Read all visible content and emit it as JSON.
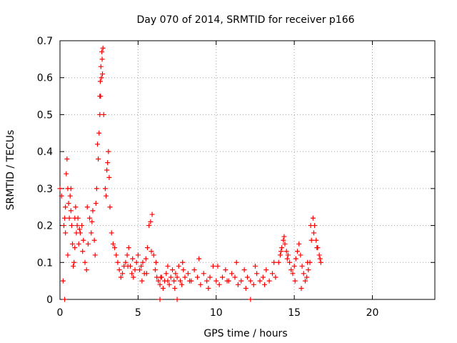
{
  "chart_data": {
    "type": "scatter",
    "title": "Day 070 of 2014, SRMTID for receiver p166",
    "xlabel": "GPS time / hours",
    "ylabel": "SRMTID / TECUs",
    "xlim": [
      0,
      24
    ],
    "ylim": [
      0,
      0.7
    ],
    "xticks": [
      0,
      5,
      10,
      15,
      20
    ],
    "yticks": [
      0,
      0.1,
      0.2,
      0.3,
      0.4,
      0.5,
      0.6,
      0.7
    ],
    "xtick_labels": [
      "0",
      "5",
      "10",
      "15",
      "20"
    ],
    "ytick_labels": [
      "0",
      "0.1",
      "0.2",
      "0.3",
      "0.4",
      "0.5",
      "0.6",
      "0.7"
    ],
    "grid": true,
    "marker": "+",
    "color": "#ff0000",
    "series": [
      {
        "name": "SRMTID",
        "x": [
          0.0,
          0.1,
          0.25,
          0.3,
          0.35,
          0.4,
          0.45,
          0.5,
          0.55,
          0.6,
          0.65,
          0.7,
          0.75,
          0.8,
          0.85,
          0.9,
          0.95,
          1.0,
          1.05,
          1.1,
          1.15,
          1.2,
          1.3,
          1.4,
          1.5,
          1.6,
          1.7,
          1.8,
          1.9,
          2.0,
          2.1,
          2.2,
          2.3,
          2.35,
          2.4,
          2.45,
          2.5,
          2.55,
          2.6,
          2.65,
          2.7,
          2.75,
          2.8,
          2.9,
          3.0,
          3.1,
          3.2,
          3.3,
          3.4,
          3.5,
          3.6,
          3.7,
          3.8,
          3.9,
          4.0,
          4.1,
          4.2,
          4.3,
          4.4,
          4.5,
          4.6,
          4.7,
          4.8,
          4.9,
          5.0,
          5.1,
          5.2,
          5.3,
          5.4,
          5.5,
          5.6,
          5.7,
          5.8,
          5.9,
          6.0,
          6.1,
          6.2,
          6.3,
          6.4,
          6.5,
          6.6,
          6.7,
          6.8,
          6.9,
          7.0,
          7.1,
          7.2,
          7.3,
          7.4,
          7.5,
          7.6,
          7.7,
          7.8,
          7.9,
          8.0,
          8.2,
          8.4,
          8.6,
          8.8,
          9.0,
          9.2,
          9.4,
          9.6,
          9.8,
          10.0,
          10.2,
          10.4,
          10.6,
          10.8,
          11.0,
          11.2,
          11.4,
          11.6,
          11.8,
          12.0,
          12.2,
          12.4,
          12.6,
          12.8,
          13.0,
          13.2,
          13.4,
          13.6,
          13.8,
          14.0,
          14.1,
          14.2,
          14.3,
          14.4,
          14.5,
          14.6,
          14.7,
          14.8,
          14.9,
          15.0,
          15.1,
          15.2,
          15.3,
          15.4,
          15.5,
          15.6,
          15.7,
          15.8,
          15.9,
          16.0,
          16.1,
          16.2,
          16.3,
          16.4,
          16.5,
          16.6,
          16.7,
          0.2,
          0.35,
          0.5,
          0.7,
          0.95,
          1.25,
          1.45,
          1.75,
          2.05,
          2.25,
          2.55,
          2.58,
          2.62,
          2.68,
          2.72,
          2.95,
          3.05,
          3.15,
          4.35,
          4.65,
          5.25,
          5.55,
          5.85,
          6.15,
          6.45,
          6.9,
          7.35,
          7.85,
          8.3,
          8.9,
          9.5,
          10.1,
          10.7,
          11.3,
          11.9,
          12.5,
          13.1,
          13.7,
          14.15,
          14.35,
          14.55,
          15.05,
          15.45,
          15.85,
          16.05,
          16.25,
          16.45,
          16.65,
          0.3,
          6.4,
          7.5,
          12.2
        ],
        "y": [
          0.3,
          0.28,
          0.2,
          0.22,
          0.25,
          0.34,
          0.38,
          0.3,
          0.26,
          0.22,
          0.28,
          0.3,
          0.2,
          0.15,
          0.09,
          0.1,
          0.22,
          0.25,
          0.18,
          0.2,
          0.22,
          0.15,
          0.18,
          0.2,
          0.16,
          0.1,
          0.08,
          0.15,
          0.22,
          0.18,
          0.24,
          0.16,
          0.26,
          0.3,
          0.42,
          0.38,
          0.45,
          0.5,
          0.55,
          0.6,
          0.65,
          0.68,
          0.5,
          0.3,
          0.35,
          0.4,
          0.25,
          0.18,
          0.15,
          0.14,
          0.12,
          0.1,
          0.08,
          0.06,
          0.07,
          0.09,
          0.1,
          0.12,
          0.14,
          0.09,
          0.07,
          0.06,
          0.08,
          0.1,
          0.12,
          0.08,
          0.09,
          0.1,
          0.07,
          0.11,
          0.14,
          0.2,
          0.21,
          0.23,
          0.12,
          0.08,
          0.06,
          0.05,
          0.04,
          0.06,
          0.03,
          0.05,
          0.07,
          0.05,
          0.04,
          0.06,
          0.08,
          0.05,
          0.07,
          0.06,
          0.09,
          0.05,
          0.04,
          0.08,
          0.06,
          0.07,
          0.05,
          0.08,
          0.06,
          0.04,
          0.07,
          0.05,
          0.06,
          0.09,
          0.05,
          0.04,
          0.06,
          0.08,
          0.05,
          0.07,
          0.06,
          0.04,
          0.05,
          0.08,
          0.06,
          0.05,
          0.04,
          0.07,
          0.05,
          0.06,
          0.08,
          0.05,
          0.07,
          0.06,
          0.1,
          0.12,
          0.14,
          0.16,
          0.15,
          0.13,
          0.12,
          0.1,
          0.08,
          0.07,
          0.09,
          0.11,
          0.13,
          0.15,
          0.12,
          0.09,
          0.07,
          0.05,
          0.06,
          0.08,
          0.1,
          0.16,
          0.22,
          0.2,
          0.16,
          0.14,
          0.12,
          0.1,
          0.05,
          0.18,
          0.12,
          0.24,
          0.14,
          0.19,
          0.13,
          0.25,
          0.21,
          0.12,
          0.55,
          0.59,
          0.63,
          0.67,
          0.61,
          0.28,
          0.37,
          0.33,
          0.09,
          0.11,
          0.05,
          0.07,
          0.13,
          0.1,
          0.06,
          0.09,
          0.03,
          0.1,
          0.05,
          0.11,
          0.03,
          0.09,
          0.05,
          0.1,
          0.03,
          0.09,
          0.04,
          0.1,
          0.13,
          0.17,
          0.11,
          0.05,
          0.03,
          0.1,
          0.2,
          0.18,
          0.14,
          0.11,
          0.0,
          0.0,
          0.0,
          0.0
        ]
      }
    ]
  }
}
